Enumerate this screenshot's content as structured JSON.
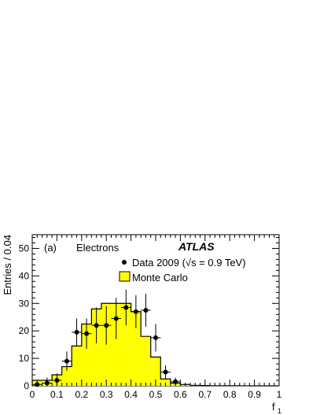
{
  "chart_data": {
    "type": "bar",
    "panel_label": "(a)",
    "subtitle": "Electrons",
    "experiment": "ATLAS",
    "xlabel": "f",
    "xlabel_sub": "1",
    "ylabel": "Entries / 0.04",
    "xlim": [
      0,
      1
    ],
    "ylim": [
      0,
      55
    ],
    "xticks": [
      "0",
      "0.1",
      "0.2",
      "0.3",
      "0.4",
      "0.5",
      "0.6",
      "0.7",
      "0.8",
      "0.9",
      "1"
    ],
    "yticks": [
      "0",
      "10",
      "20",
      "30",
      "40",
      "50"
    ],
    "legend": {
      "data": "Data 2009 (√s = 0.9 TeV)",
      "mc": "Monte Carlo",
      "placement": "top-right"
    },
    "mc_bin_width": 0.04,
    "mc_bin_start": 0,
    "mc_values": [
      2.0,
      2.0,
      4.0,
      7.0,
      14.5,
      22.5,
      28.0,
      30.0,
      30.0,
      30.0,
      27.0,
      18.0,
      10.5,
      2.5,
      1.0,
      0.5,
      0.2,
      0.1,
      0.05,
      0.05,
      0.03,
      0.02,
      0.01,
      0.01,
      0.0
    ],
    "series": [
      {
        "name": "Data 2009 (√s = 0.9 TeV)",
        "x": [
          0.02,
          0.06,
          0.1,
          0.14,
          0.18,
          0.22,
          0.26,
          0.3,
          0.34,
          0.38,
          0.42,
          0.46,
          0.5,
          0.54,
          0.58
        ],
        "y": [
          0.5,
          1.0,
          2.0,
          9.0,
          19.5,
          19.0,
          22.0,
          22.0,
          24.5,
          28.5,
          27.0,
          27.5,
          17.5,
          5.0,
          1.5
        ],
        "err": [
          1.5,
          2.0,
          2.5,
          3.5,
          5.0,
          5.5,
          6.5,
          7.0,
          7.5,
          6.5,
          6.0,
          6.0,
          5.0,
          2.5,
          1.5
        ]
      }
    ],
    "colors": {
      "mc_fill": "#ffff00",
      "mc_line": "#000000",
      "data_marker": "#000000"
    }
  }
}
